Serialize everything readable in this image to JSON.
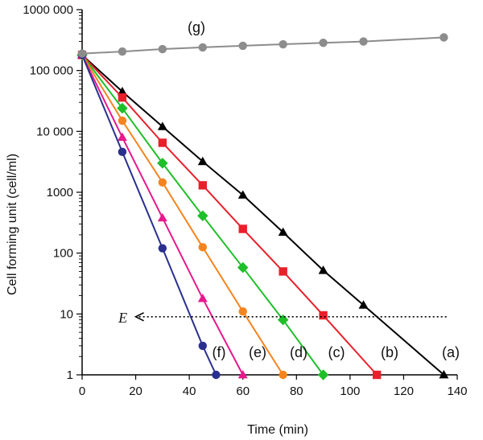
{
  "chart_data": {
    "type": "line",
    "xlabel": "Time (min)",
    "ylabel": "Cell forming unit (cell/ml)",
    "yscale": "log",
    "xlim": [
      0,
      140
    ],
    "ylim": [
      1,
      1000000
    ],
    "xticks": [
      0,
      20,
      40,
      60,
      80,
      100,
      120,
      140
    ],
    "xtick_labels": [
      "0",
      "20",
      "40",
      "60",
      "80",
      "100",
      "120",
      "140"
    ],
    "yticks": [
      1,
      10,
      100,
      1000,
      10000,
      100000,
      1000000
    ],
    "ytick_labels": [
      "1",
      "10",
      "100",
      "1000",
      "10 000",
      "100 000",
      "1000 000"
    ],
    "series": [
      {
        "name": "(a)",
        "color": "#000000",
        "marker": "triangle",
        "x": [
          0,
          15,
          30,
          45,
          60,
          75,
          90,
          105,
          135
        ],
        "y": [
          180000,
          45000,
          12000,
          3200,
          900,
          220,
          52,
          14,
          1
        ]
      },
      {
        "name": "(b)",
        "color": "#e8202a",
        "marker": "square",
        "x": [
          0,
          15,
          30,
          45,
          60,
          75,
          90,
          110
        ],
        "y": [
          180000,
          36000,
          6500,
          1300,
          250,
          50,
          9.5,
          1
        ]
      },
      {
        "name": "(c)",
        "color": "#1fbf2a",
        "marker": "diamond",
        "x": [
          0,
          15,
          30,
          45,
          60,
          75,
          90
        ],
        "y": [
          180000,
          24000,
          3000,
          410,
          58,
          8,
          1
        ]
      },
      {
        "name": "(d)",
        "color": "#f5841f",
        "marker": "circle",
        "x": [
          0,
          15,
          30,
          45,
          60,
          75
        ],
        "y": [
          180000,
          15000,
          1450,
          125,
          11,
          1
        ]
      },
      {
        "name": "(e)",
        "color": "#e8188c",
        "marker": "triangle",
        "x": [
          0,
          15,
          30,
          45,
          60
        ],
        "y": [
          180000,
          8000,
          380,
          18,
          1
        ]
      },
      {
        "name": "(f)",
        "color": "#2a2f8f",
        "marker": "circle",
        "x": [
          0,
          15,
          30,
          45,
          50
        ],
        "y": [
          180000,
          4600,
          120,
          3,
          1
        ]
      },
      {
        "name": "(g)",
        "color": "#8c8c8c",
        "marker": "circle",
        "x": [
          0,
          15,
          30,
          45,
          60,
          75,
          90,
          105,
          135
        ],
        "y": [
          190000,
          205000,
          225000,
          240000,
          255000,
          270000,
          285000,
          300000,
          350000
        ]
      }
    ],
    "annotation": {
      "label": "E",
      "y": 9,
      "x_start": 136,
      "x_end": 20,
      "style": "dotted arrow"
    }
  }
}
